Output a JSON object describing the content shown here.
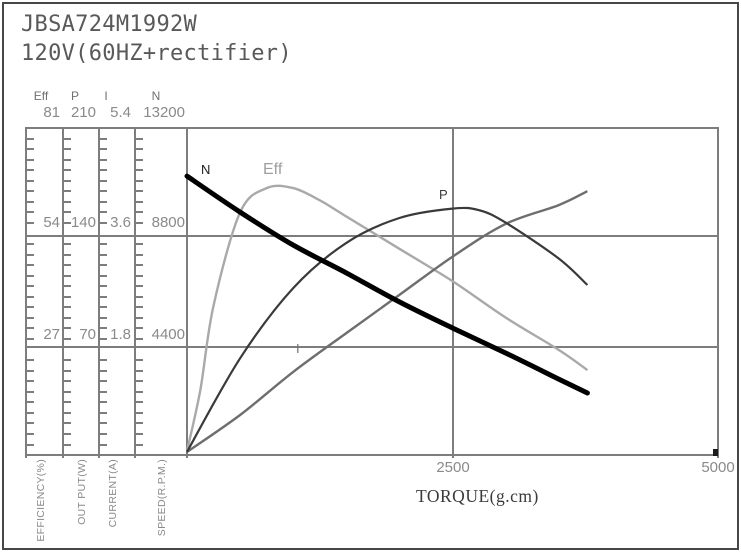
{
  "title": {
    "model": "JBSA724M1992W",
    "voltage": "120V(60HZ+rectifier)"
  },
  "axes": {
    "columns": [
      {
        "header": "Eff",
        "unit_label": "EFFICIENCY(%)",
        "ticks": [
          "81",
          "54",
          "27"
        ]
      },
      {
        "header": "P",
        "unit_label": "OUT PUT(W)",
        "ticks": [
          "210",
          "140",
          "70"
        ]
      },
      {
        "header": "I",
        "unit_label": "CURRENT(A)",
        "ticks": [
          "5.4",
          "3.6",
          "1.8"
        ]
      },
      {
        "header": "N",
        "unit_label": "SPEED(R.P.M.)",
        "ticks": [
          "13200",
          "8800",
          "4400"
        ]
      }
    ],
    "x": {
      "label": "TORQUE(g.cm)",
      "tick_2500": "2500",
      "tick_5000": "5000"
    }
  },
  "curve_labels": {
    "n": "N",
    "eff": "Eff",
    "p": "P",
    "i": "I"
  },
  "colors": {
    "speed_curve": "#000000",
    "power_curve": "#3a3a3a",
    "current_curve": "#6e6e6e",
    "efficiency_curve": "#a9a9a9",
    "grid": "#7d7d7d",
    "label_gray": "#8a8a8a",
    "title_gray": "#595959"
  },
  "chart_data": {
    "type": "line",
    "title": "JBSA724M1992W 120V(60HZ+rectifier) motor performance curves",
    "xlabel": "TORQUE(g.cm)",
    "x_range": [
      0,
      5000
    ],
    "x_ticks": [
      2500,
      5000
    ],
    "grid": true,
    "legend_position": "inline-labels",
    "series": [
      {
        "name": "N",
        "ylabel": "SPEED(R.P.M.)",
        "ylim": [
          0,
          13200
        ],
        "axis_ticks": [
          4400,
          8800,
          13200
        ],
        "x": [
          0,
          500,
          1000,
          1500,
          2000,
          2500,
          3000,
          3500,
          3770
        ],
        "values": [
          11240,
          9790,
          8460,
          7340,
          6170,
          5120,
          4110,
          3060,
          2500
        ]
      },
      {
        "name": "Eff",
        "ylabel": "EFFICIENCY(%)",
        "ylim": [
          0,
          81
        ],
        "axis_ticks": [
          27,
          54,
          81
        ],
        "x": [
          0,
          125,
          250,
          500,
          750,
          1000,
          1250,
          1500,
          2000,
          2500,
          3000,
          3500,
          3770
        ],
        "values": [
          1,
          16,
          37,
          60,
          66,
          66,
          63,
          59,
          51,
          43,
          34,
          26,
          21
        ]
      },
      {
        "name": "P",
        "ylabel": "OUT PUT(W)",
        "ylim": [
          0,
          210
        ],
        "axis_ticks": [
          70,
          140,
          210
        ],
        "x": [
          0,
          500,
          1000,
          1500,
          2000,
          2500,
          2750,
          3000,
          3500,
          3770
        ],
        "values": [
          2,
          62,
          107,
          136,
          152,
          158,
          157,
          149,
          126,
          109
        ]
      },
      {
        "name": "I",
        "ylabel": "CURRENT(A)",
        "ylim": [
          0,
          5.4
        ],
        "axis_ticks": [
          1.8,
          3.6,
          5.4
        ],
        "x": [
          0,
          500,
          1000,
          1500,
          2000,
          2500,
          3000,
          3500,
          3770
        ],
        "values": [
          0.05,
          0.66,
          1.37,
          2.01,
          2.64,
          3.27,
          3.81,
          4.12,
          4.35
        ]
      }
    ]
  }
}
